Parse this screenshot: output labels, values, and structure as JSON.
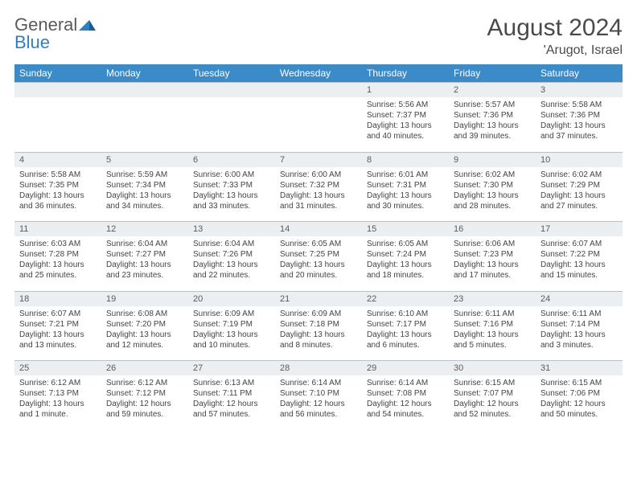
{
  "logo": {
    "text1": "General",
    "text2": "Blue",
    "accent": "#2f7fc2"
  },
  "title": "August 2024",
  "location": "'Arugot, Israel",
  "colors": {
    "header_bg": "#3b8bc8",
    "header_fg": "#ffffff",
    "daynum_bg": "#eceff1",
    "cell_bg": "#ffffff",
    "border": "#b9c2c8",
    "text": "#444444"
  },
  "weekdays": [
    "Sunday",
    "Monday",
    "Tuesday",
    "Wednesday",
    "Thursday",
    "Friday",
    "Saturday"
  ],
  "weeks": [
    {
      "nums": [
        "",
        "",
        "",
        "",
        "1",
        "2",
        "3"
      ],
      "cells": [
        null,
        null,
        null,
        null,
        {
          "sunrise": "5:56 AM",
          "sunset": "7:37 PM",
          "daylight": "13 hours and 40 minutes."
        },
        {
          "sunrise": "5:57 AM",
          "sunset": "7:36 PM",
          "daylight": "13 hours and 39 minutes."
        },
        {
          "sunrise": "5:58 AM",
          "sunset": "7:36 PM",
          "daylight": "13 hours and 37 minutes."
        }
      ]
    },
    {
      "nums": [
        "4",
        "5",
        "6",
        "7",
        "8",
        "9",
        "10"
      ],
      "cells": [
        {
          "sunrise": "5:58 AM",
          "sunset": "7:35 PM",
          "daylight": "13 hours and 36 minutes."
        },
        {
          "sunrise": "5:59 AM",
          "sunset": "7:34 PM",
          "daylight": "13 hours and 34 minutes."
        },
        {
          "sunrise": "6:00 AM",
          "sunset": "7:33 PM",
          "daylight": "13 hours and 33 minutes."
        },
        {
          "sunrise": "6:00 AM",
          "sunset": "7:32 PM",
          "daylight": "13 hours and 31 minutes."
        },
        {
          "sunrise": "6:01 AM",
          "sunset": "7:31 PM",
          "daylight": "13 hours and 30 minutes."
        },
        {
          "sunrise": "6:02 AM",
          "sunset": "7:30 PM",
          "daylight": "13 hours and 28 minutes."
        },
        {
          "sunrise": "6:02 AM",
          "sunset": "7:29 PM",
          "daylight": "13 hours and 27 minutes."
        }
      ]
    },
    {
      "nums": [
        "11",
        "12",
        "13",
        "14",
        "15",
        "16",
        "17"
      ],
      "cells": [
        {
          "sunrise": "6:03 AM",
          "sunset": "7:28 PM",
          "daylight": "13 hours and 25 minutes."
        },
        {
          "sunrise": "6:04 AM",
          "sunset": "7:27 PM",
          "daylight": "13 hours and 23 minutes."
        },
        {
          "sunrise": "6:04 AM",
          "sunset": "7:26 PM",
          "daylight": "13 hours and 22 minutes."
        },
        {
          "sunrise": "6:05 AM",
          "sunset": "7:25 PM",
          "daylight": "13 hours and 20 minutes."
        },
        {
          "sunrise": "6:05 AM",
          "sunset": "7:24 PM",
          "daylight": "13 hours and 18 minutes."
        },
        {
          "sunrise": "6:06 AM",
          "sunset": "7:23 PM",
          "daylight": "13 hours and 17 minutes."
        },
        {
          "sunrise": "6:07 AM",
          "sunset": "7:22 PM",
          "daylight": "13 hours and 15 minutes."
        }
      ]
    },
    {
      "nums": [
        "18",
        "19",
        "20",
        "21",
        "22",
        "23",
        "24"
      ],
      "cells": [
        {
          "sunrise": "6:07 AM",
          "sunset": "7:21 PM",
          "daylight": "13 hours and 13 minutes."
        },
        {
          "sunrise": "6:08 AM",
          "sunset": "7:20 PM",
          "daylight": "13 hours and 12 minutes."
        },
        {
          "sunrise": "6:09 AM",
          "sunset": "7:19 PM",
          "daylight": "13 hours and 10 minutes."
        },
        {
          "sunrise": "6:09 AM",
          "sunset": "7:18 PM",
          "daylight": "13 hours and 8 minutes."
        },
        {
          "sunrise": "6:10 AM",
          "sunset": "7:17 PM",
          "daylight": "13 hours and 6 minutes."
        },
        {
          "sunrise": "6:11 AM",
          "sunset": "7:16 PM",
          "daylight": "13 hours and 5 minutes."
        },
        {
          "sunrise": "6:11 AM",
          "sunset": "7:14 PM",
          "daylight": "13 hours and 3 minutes."
        }
      ]
    },
    {
      "nums": [
        "25",
        "26",
        "27",
        "28",
        "29",
        "30",
        "31"
      ],
      "cells": [
        {
          "sunrise": "6:12 AM",
          "sunset": "7:13 PM",
          "daylight": "13 hours and 1 minute."
        },
        {
          "sunrise": "6:12 AM",
          "sunset": "7:12 PM",
          "daylight": "12 hours and 59 minutes."
        },
        {
          "sunrise": "6:13 AM",
          "sunset": "7:11 PM",
          "daylight": "12 hours and 57 minutes."
        },
        {
          "sunrise": "6:14 AM",
          "sunset": "7:10 PM",
          "daylight": "12 hours and 56 minutes."
        },
        {
          "sunrise": "6:14 AM",
          "sunset": "7:08 PM",
          "daylight": "12 hours and 54 minutes."
        },
        {
          "sunrise": "6:15 AM",
          "sunset": "7:07 PM",
          "daylight": "12 hours and 52 minutes."
        },
        {
          "sunrise": "6:15 AM",
          "sunset": "7:06 PM",
          "daylight": "12 hours and 50 minutes."
        }
      ]
    }
  ],
  "labels": {
    "sunrise": "Sunrise: ",
    "sunset": "Sunset: ",
    "daylight": "Daylight: "
  }
}
